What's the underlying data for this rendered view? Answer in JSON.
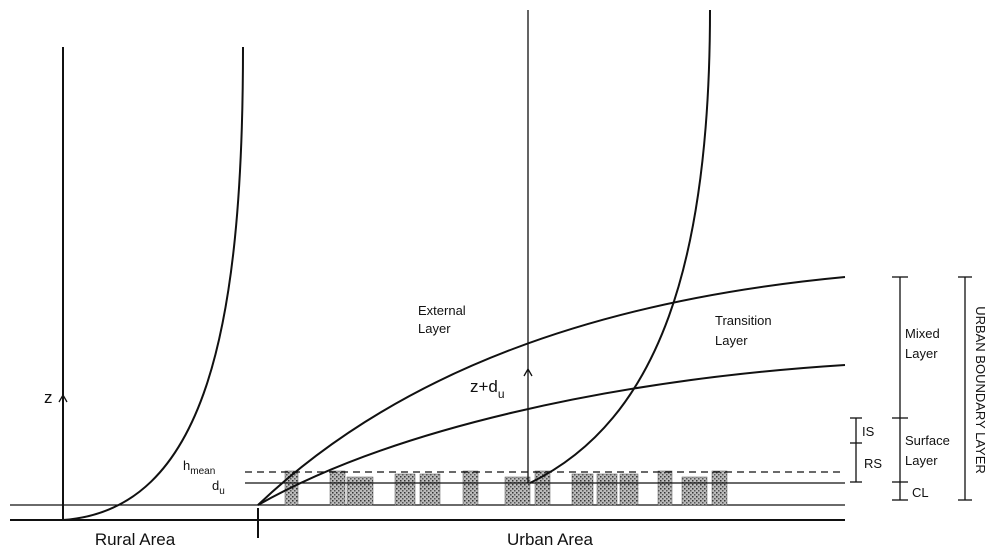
{
  "labels": {
    "rural_area": "Rural Area",
    "urban_area": "Urban Area",
    "z": "z",
    "z_plus_du": {
      "base": "z+d",
      "sub": "u"
    },
    "h_mean": {
      "base": "h",
      "sub": "mean"
    },
    "d_u": {
      "base": "d",
      "sub": "u"
    },
    "external_layer": [
      "External",
      "Layer"
    ],
    "transition_layer": [
      "Transition",
      "Layer"
    ],
    "mixed_layer": [
      "Mixed",
      "Layer"
    ],
    "surface_layer": [
      "Surface",
      "Layer"
    ],
    "is": "IS",
    "rs": "RS",
    "cl": "CL",
    "urban_boundary_layer": "URBAN BOUNDARY LAYER"
  }
}
